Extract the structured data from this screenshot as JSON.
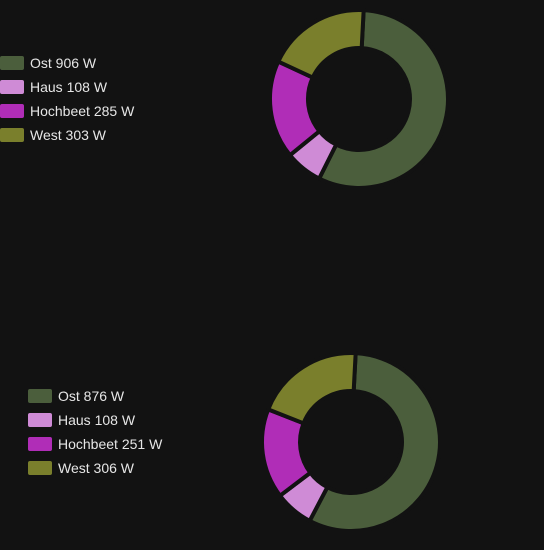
{
  "chart_data": [
    {
      "type": "pie",
      "variant": "donut",
      "legend_position": "left",
      "series": [
        {
          "label": "Ost 906 W",
          "value": 906,
          "color": "#4b5e3c"
        },
        {
          "label": "Haus 108 W",
          "value": 108,
          "color": "#cf8bd6"
        },
        {
          "label": "Hochbeet 285 W",
          "value": 285,
          "color": "#b02db7"
        },
        {
          "label": "West 303 W",
          "value": 303,
          "color": "#7a7f2c"
        }
      ]
    },
    {
      "type": "pie",
      "variant": "donut",
      "legend_position": "left",
      "series": [
        {
          "label": "Ost 876 W",
          "value": 876,
          "color": "#4b5e3c"
        },
        {
          "label": "Haus 108 W",
          "value": 108,
          "color": "#cf8bd6"
        },
        {
          "label": "Hochbeet 251 W",
          "value": 251,
          "color": "#b02db7"
        },
        {
          "label": "West 306 W",
          "value": 306,
          "color": "#7a7f2c"
        }
      ]
    }
  ],
  "background_color": "#121212",
  "text_color": "#e6e6e6"
}
